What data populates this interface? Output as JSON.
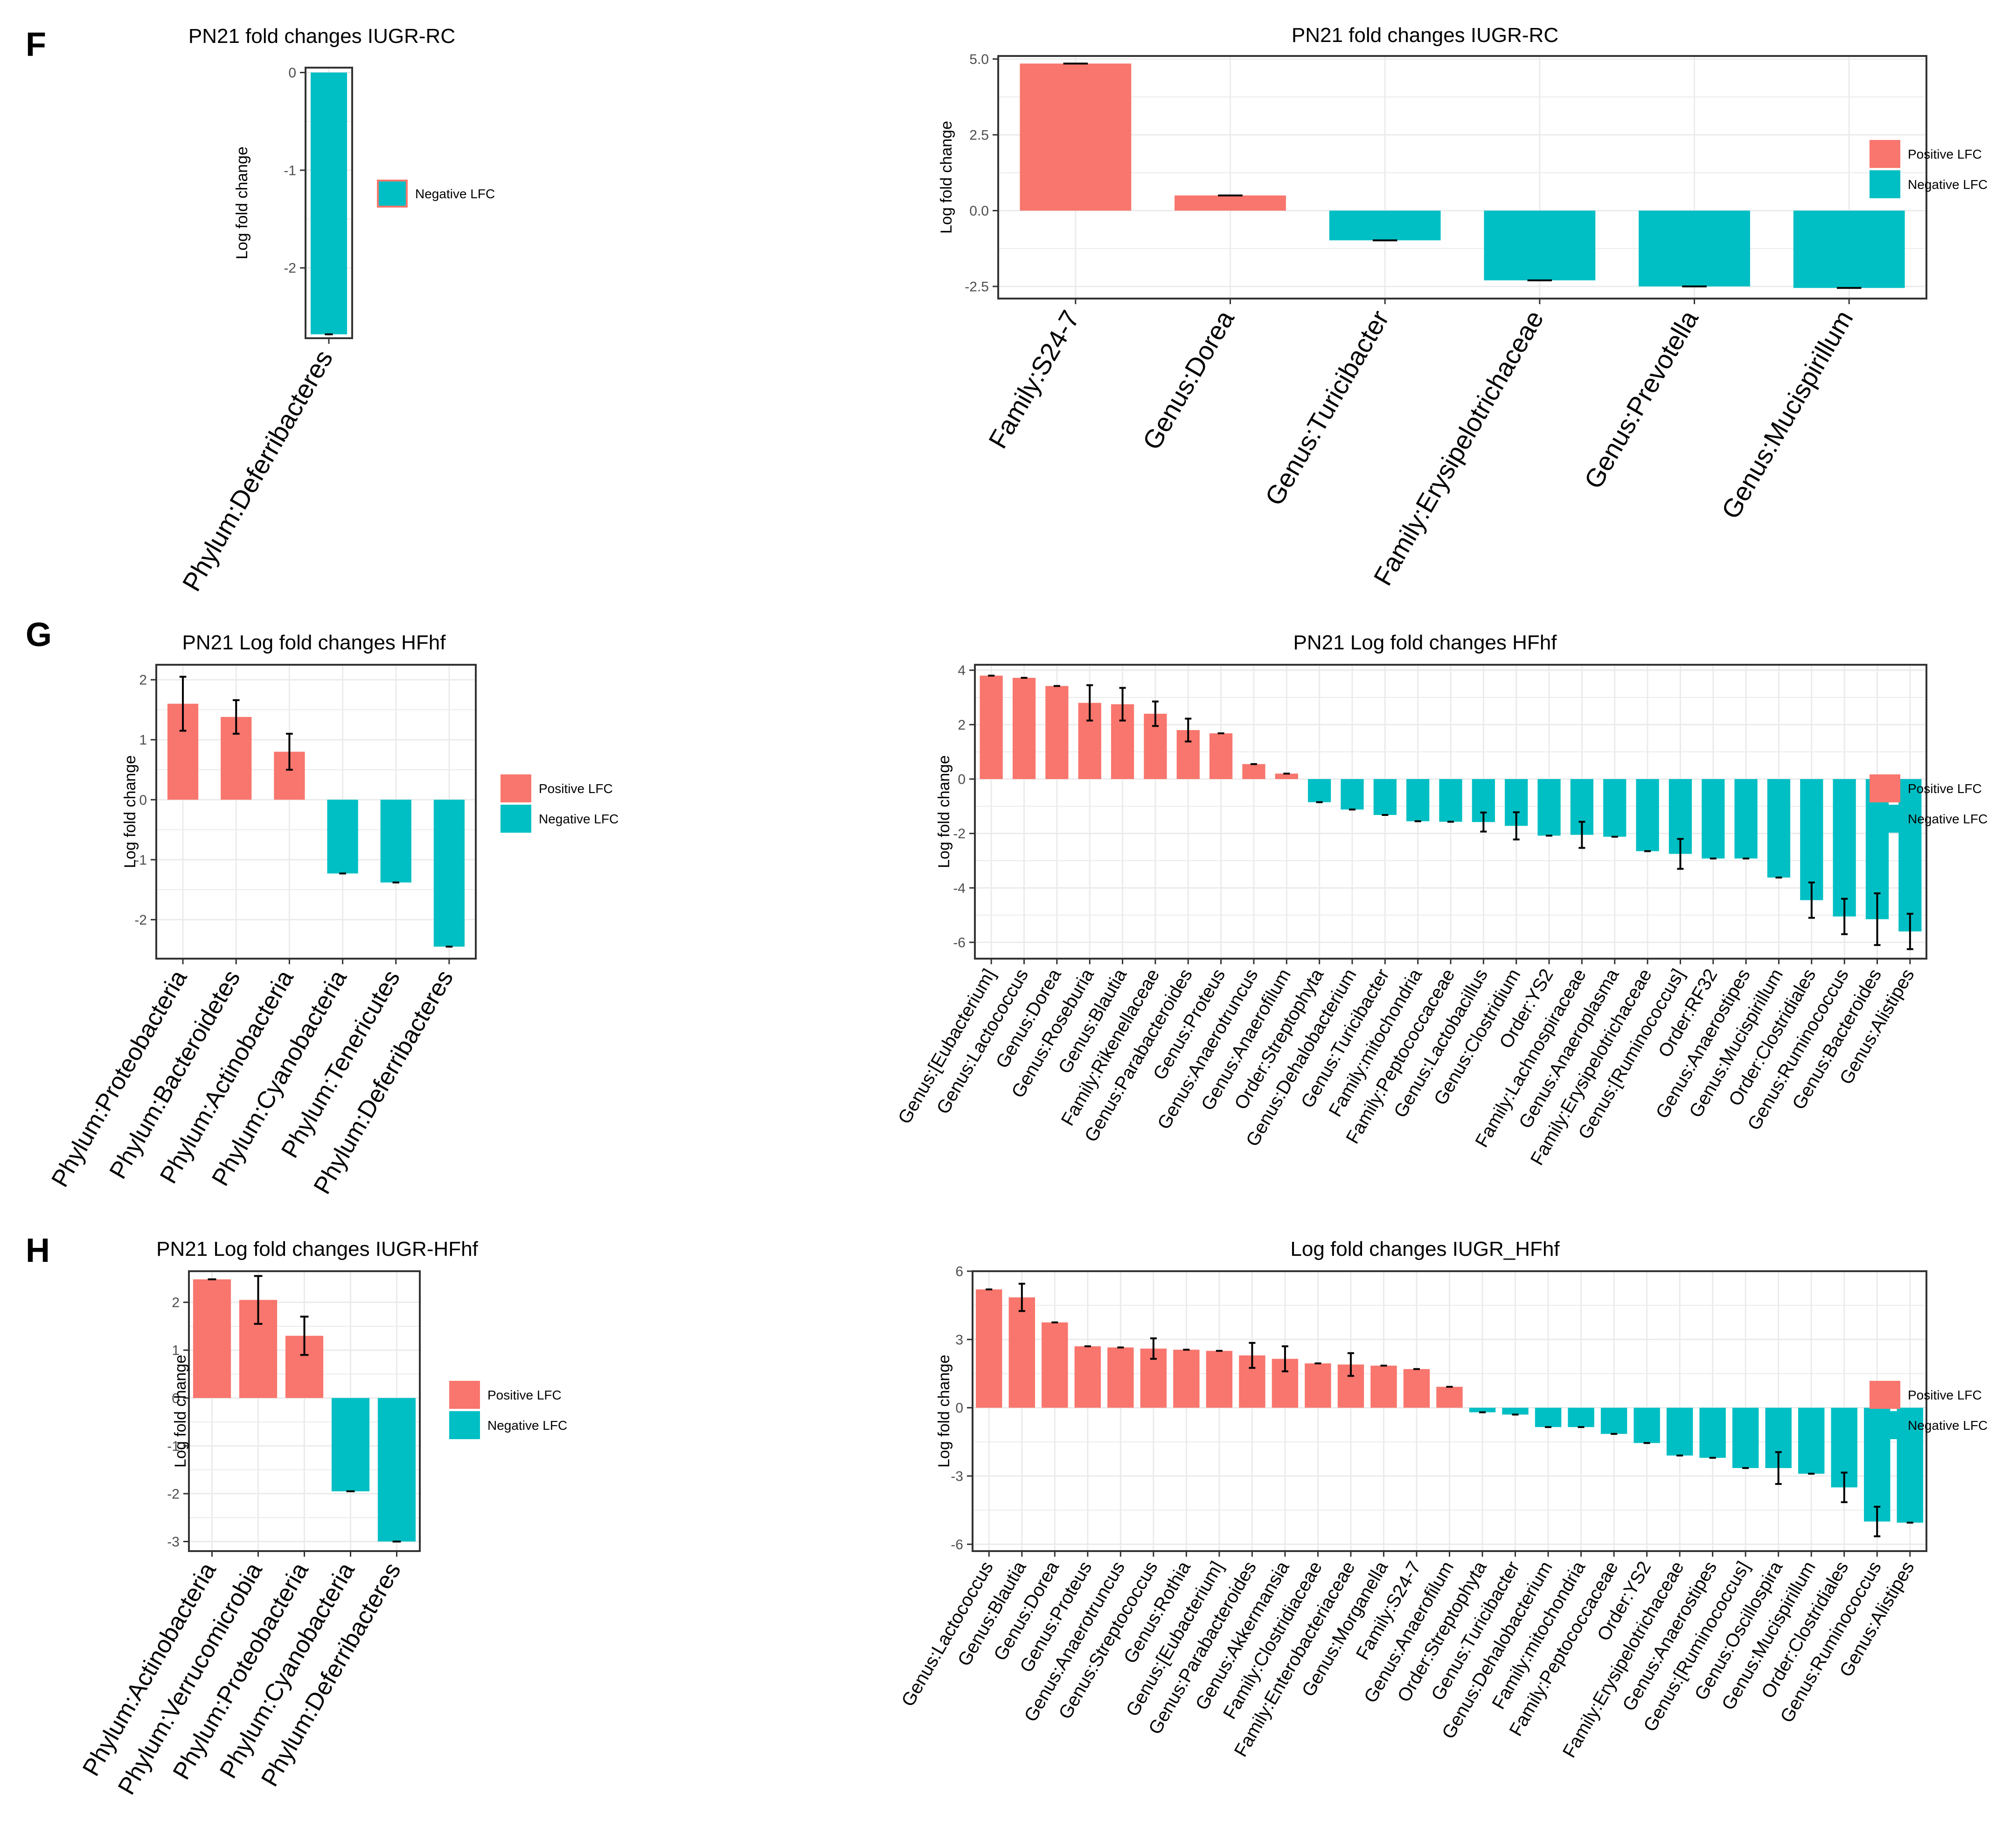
{
  "panel_letters": [
    "F",
    "G",
    "H"
  ],
  "colors": {
    "positive": "#F8766D",
    "negative": "#00BFC4",
    "panel_bg": "#FFFFFF",
    "grid": "#EBEBEB",
    "frame": "#333333",
    "text": "#000000",
    "axis_text": "#4D4D4D"
  },
  "chart_data": [
    {
      "id": "F-left",
      "type": "bar",
      "title": "PN21 fold changes IUGR-RC",
      "ylabel": "Log fold change",
      "xlabel": "",
      "ylim": [
        -2.72,
        0.05
      ],
      "yticks": [
        0,
        -1,
        -2
      ],
      "legend": {
        "position": "right",
        "entries": [
          {
            "label": "Negative LFC",
            "sign": "negative"
          }
        ]
      },
      "categories": [
        "Phylum:Deferribacteres"
      ],
      "values": [
        -2.68
      ],
      "errors": [
        0
      ]
    },
    {
      "id": "F-right",
      "type": "bar",
      "title": "PN21 fold changes IUGR-RC",
      "ylabel": "Log fold change",
      "xlabel": "",
      "ylim": [
        -2.9,
        5.1
      ],
      "yticks": [
        5.0,
        2.5,
        0.0,
        -2.5
      ],
      "tick_decimals": 1,
      "legend": {
        "position": "right",
        "entries": [
          {
            "label": "Positive LFC",
            "sign": "positive"
          },
          {
            "label": "Negative LFC",
            "sign": "negative"
          }
        ]
      },
      "categories": [
        "Family:S24-7",
        "Genus:Dorea",
        "Genus:Turicibacter",
        "Family:Erysipelotrichaceae",
        "Genus:Prevotella",
        "Genus:Mucispirillum"
      ],
      "values": [
        4.85,
        0.5,
        -0.98,
        -2.3,
        -2.5,
        -2.55
      ],
      "errors": [
        0,
        0,
        0,
        0,
        0,
        0
      ]
    },
    {
      "id": "G-left",
      "type": "bar",
      "title": "PN21 Log fold changes HFhf",
      "ylabel": "Log fold change",
      "xlabel": "",
      "ylim": [
        -2.65,
        2.25
      ],
      "yticks": [
        2,
        1,
        0,
        -1,
        -2
      ],
      "legend": {
        "position": "right",
        "entries": [
          {
            "label": "Positive LFC",
            "sign": "positive"
          },
          {
            "label": "Negative LFC",
            "sign": "negative"
          }
        ]
      },
      "categories": [
        "Phylum:Proteobacteria",
        "Phylum:Bacteroidetes",
        "Phylum:Actinobacteria",
        "Phylum:Cyanobacteria",
        "Phylum:Tenericutes",
        "Phylum:Deferribacteres"
      ],
      "values": [
        1.6,
        1.38,
        0.8,
        -1.23,
        -1.38,
        -2.45
      ],
      "errors": [
        0.45,
        0.28,
        0.3,
        0,
        0,
        0
      ]
    },
    {
      "id": "G-right",
      "type": "bar",
      "title": "PN21 Log fold changes HFhf",
      "ylabel": "Log fold change",
      "xlabel": "",
      "ylim": [
        -6.6,
        4.2
      ],
      "yticks": [
        4,
        2,
        0,
        -2,
        -4,
        -6
      ],
      "legend": {
        "position": "right",
        "entries": [
          {
            "label": "Positive LFC",
            "sign": "positive"
          },
          {
            "label": "Negative LFC",
            "sign": "negative"
          }
        ]
      },
      "categories": [
        "Genus:[Eubacterium]",
        "Genus:Lactococcus",
        "Genus:Dorea",
        "Genus:Roseburia",
        "Genus:Blautia",
        "Family:Rikenellaceae",
        "Genus:Parabacteroides",
        "Genus:Proteus",
        "Genus:Anaerotruncus",
        "Genus:Anaerofilum",
        "Order:Streptophyta",
        "Genus:Dehalobacterium",
        "Genus:Turicibacter",
        "Family:mitochondria",
        "Family:Peptococcaceae",
        "Genus:Lactobacillus",
        "Genus:Clostridium",
        "Order:YS2",
        "Family:Lachnospiraceae",
        "Genus:Anaeroplasma",
        "Family:Erysipelotrichaceae",
        "Genus:[Ruminococcus]",
        "Order:RF32",
        "Genus:Anaerostipes",
        "Genus:Mucispirillum",
        "Order:Clostridiales",
        "Genus:Ruminococcus",
        "Genus:Bacteroides",
        "Genus:Alistipes"
      ],
      "values": [
        3.8,
        3.72,
        3.42,
        2.8,
        2.75,
        2.4,
        1.8,
        1.68,
        0.55,
        0.2,
        -0.85,
        -1.12,
        -1.32,
        -1.55,
        -1.57,
        -1.58,
        -1.72,
        -2.08,
        -2.05,
        -2.12,
        -2.65,
        -2.75,
        -2.92,
        -2.92,
        -3.62,
        -4.45,
        -5.05,
        -5.15,
        -5.6
      ],
      "errors": [
        0,
        0,
        0,
        0.65,
        0.6,
        0.45,
        0.42,
        0,
        0,
        0,
        0,
        0,
        0,
        0,
        0,
        0.35,
        0.5,
        0,
        0.48,
        0,
        0,
        0.55,
        0,
        0,
        0,
        0.65,
        0.65,
        0.95,
        0.65
      ]
    },
    {
      "id": "H-left",
      "type": "bar",
      "title": "PN21 Log fold changes IUGR-HFhf",
      "ylabel": "Log fold change",
      "xlabel": "",
      "ylim": [
        -3.2,
        2.65
      ],
      "yticks": [
        2,
        1,
        0,
        -1,
        -2,
        -3
      ],
      "legend": {
        "position": "right",
        "entries": [
          {
            "label": "Positive LFC",
            "sign": "positive"
          },
          {
            "label": "Negative LFC",
            "sign": "negative"
          }
        ]
      },
      "categories": [
        "Phylum:Actinobacteria",
        "Phylum:Verrucomicrobia",
        "Phylum:Proteobacteria",
        "Phylum:Cyanobacteria",
        "Phylum:Deferribacteres"
      ],
      "values": [
        2.48,
        2.05,
        1.3,
        -1.95,
        -3.0
      ],
      "errors": [
        0,
        0.5,
        0.4,
        0,
        0
      ]
    },
    {
      "id": "H-right",
      "type": "bar",
      "title": "Log fold changes IUGR_HFhf",
      "ylabel": "Log fold change",
      "xlabel": "",
      "ylim": [
        -6.3,
        6.0
      ],
      "yticks": [
        6,
        3,
        0,
        -3,
        -6
      ],
      "legend": {
        "position": "right",
        "entries": [
          {
            "label": "Positive LFC",
            "sign": "positive"
          },
          {
            "label": "Negative LFC",
            "sign": "negative"
          }
        ]
      },
      "categories": [
        "Genus:Lactococcus",
        "Genus:Blautia",
        "Genus:Dorea",
        "Genus:Proteus",
        "Genus:Anaerotruncus",
        "Genus:Streptococcus",
        "Genus:Rothia",
        "Genus:[Eubacterium]",
        "Genus:Parabacteroides",
        "Genus:Akkermansia",
        "Family:Clostridiaceae",
        "Family:Enterobacteriaceae",
        "Genus:Morganella",
        "Family:S24-7",
        "Genus:Anaerofilum",
        "Order:Streptophyta",
        "Genus:Turicibacter",
        "Genus:Dehalobacterium",
        "Family:mitochondria",
        "Family:Peptococcaceae",
        "Order:YS2",
        "Family:Erysipelotrichaceae",
        "Genus:Anaerostipes",
        "Genus:[Ruminococcus]",
        "Genus:Oscillospira",
        "Genus:Mucispirillum",
        "Order:Clostridiales",
        "Genus:Ruminococcus",
        "Genus:Alistipes"
      ],
      "values": [
        5.2,
        4.85,
        3.75,
        2.7,
        2.65,
        2.6,
        2.55,
        2.5,
        2.3,
        2.15,
        1.95,
        1.9,
        1.85,
        1.7,
        0.92,
        -0.2,
        -0.3,
        -0.85,
        -0.85,
        -1.15,
        -1.55,
        -2.1,
        -2.2,
        -2.65,
        -2.65,
        -2.9,
        -3.5,
        -5.0,
        -5.05
      ],
      "errors": [
        0,
        0.6,
        0,
        0,
        0,
        0.45,
        0,
        0,
        0.55,
        0.55,
        0,
        0.5,
        0,
        0,
        0,
        0,
        0,
        0,
        0,
        0,
        0,
        0,
        0,
        0,
        0.7,
        0,
        0.65,
        0.65,
        0
      ]
    }
  ]
}
